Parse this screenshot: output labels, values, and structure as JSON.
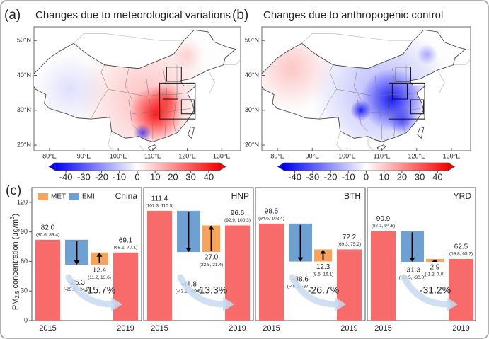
{
  "chart_data": [
    {
      "type": "map",
      "panel": "(a)",
      "title": "Changes due to meteorological variations",
      "xlim": [
        75.5,
        135.5
      ],
      "ylim": [
        18.4,
        53.9
      ],
      "xticks": [
        {
          "value": 80,
          "label": "80°E"
        },
        {
          "value": 90,
          "label": "90°E"
        },
        {
          "value": 100,
          "label": "100°E"
        },
        {
          "value": 110,
          "label": "110°E"
        },
        {
          "value": 120,
          "label": "120°E"
        },
        {
          "value": 130,
          "label": "130°E"
        }
      ],
      "yticks": [
        {
          "value": 20,
          "label": "20°N"
        },
        {
          "value": 30,
          "label": "30°N"
        },
        {
          "value": 40,
          "label": "40°N"
        },
        {
          "value": 50,
          "label": "50°N"
        }
      ],
      "colormap": [
        "#0000ff",
        "#ffffff",
        "#ff0000"
      ],
      "cbar_lim": [
        -46,
        46
      ],
      "cbar_ticks": [
        -40,
        -30,
        -20,
        -10,
        0,
        10,
        20,
        30,
        40
      ]
    },
    {
      "type": "map",
      "panel": "(b)",
      "title": "Changes due to anthropogenic control",
      "xlim": [
        75.5,
        135.5
      ],
      "ylim": [
        18.4,
        53.9
      ],
      "xticks": [
        {
          "value": 80,
          "label": "80°E"
        },
        {
          "value": 90,
          "label": "90°E"
        },
        {
          "value": 100,
          "label": "100°E"
        },
        {
          "value": 110,
          "label": "110°E"
        },
        {
          "value": 120,
          "label": "120°E"
        },
        {
          "value": 130,
          "label": "130°E"
        }
      ],
      "yticks": [
        {
          "value": 20,
          "label": "20°N"
        },
        {
          "value": 30,
          "label": "30°N"
        },
        {
          "value": 40,
          "label": "40°N"
        },
        {
          "value": 50,
          "label": "50°N"
        }
      ],
      "colormap": [
        "#0000ff",
        "#ffffff",
        "#ff0000"
      ],
      "cbar_lim": [
        -46,
        46
      ],
      "cbar_ticks": [
        -40,
        -30,
        -20,
        -10,
        0,
        10,
        20,
        30,
        40
      ]
    },
    {
      "type": "waterfall",
      "panel": "(c)",
      "title": "China",
      "ylabel": [
        "PM",
        "2.5",
        " concentration (μg/m",
        "3",
        ")"
      ],
      "legend": [
        {
          "name": "MET",
          "color": "#f7a35c"
        },
        {
          "name": "EMI",
          "color": "#6fa0d2"
        }
      ],
      "categories": [
        "2015",
        null,
        null,
        "2019"
      ],
      "values": [
        82.0,
        -25.3,
        12.4,
        69.1
      ],
      "value_labels": [
        "82.0",
        "-25.3",
        "12.4",
        "69.1"
      ],
      "intervals": [
        "(80.6, 83.4)",
        "(-25.8, -24.9)",
        "(11.2, 13.6)",
        "(68.1, 70.1)"
      ],
      "colors": [
        "#f76b6b",
        "#6fa0d2",
        "#f7a35c",
        "#f76b6b"
      ],
      "change": "-15.7%",
      "ylim": [
        0,
        135
      ],
      "yticks": [
        0,
        30,
        60,
        90,
        120
      ]
    },
    {
      "type": "waterfall",
      "title": "HNP",
      "categories": [
        "2015",
        null,
        null,
        "2019"
      ],
      "values": [
        111.4,
        -41.8,
        27.0,
        96.6
      ],
      "value_labels": [
        "111.4",
        "-41.8",
        "27.0",
        "96.6"
      ],
      "intervals": [
        "(107.3, 115.5)",
        "(-43.1, -40.6)",
        "(22.5, 31.4)",
        "(92.9, 100.3)"
      ],
      "colors": [
        "#f76b6b",
        "#6fa0d2",
        "#f7a35c",
        "#f76b6b"
      ],
      "change": "-13.3%",
      "ylim": [
        0,
        135
      ]
    },
    {
      "type": "waterfall",
      "title": "BTH",
      "categories": [
        "2015",
        null,
        null,
        "2019"
      ],
      "values": [
        98.5,
        -38.6,
        12.3,
        72.2
      ],
      "value_labels": [
        "98.5",
        "-38.6",
        "12.3",
        "72.2"
      ],
      "intervals": [
        "(94.6, 102.4)",
        "(-40.1, -37.1)",
        "(8.5, 16.1)",
        "(69.3, 75.2)"
      ],
      "colors": [
        "#f76b6b",
        "#6fa0d2",
        "#f7a35c",
        "#f76b6b"
      ],
      "change": "-26.7%",
      "ylim": [
        0,
        135
      ]
    },
    {
      "type": "waterfall",
      "title": "YRD",
      "categories": [
        "2015",
        null,
        null,
        "2019"
      ],
      "values": [
        90.9,
        -31.3,
        2.9,
        62.5
      ],
      "value_labels": [
        "90.9",
        "-31.3",
        "2.9",
        "62.5"
      ],
      "intervals": [
        "(87.1, 94.6)",
        "(-32.5, -30.0)",
        "(-1.2, 7.0)",
        "(59.8, 65.2)"
      ],
      "colors": [
        "#f76b6b",
        "#6fa0d2",
        "#f7a35c",
        "#f76b6b"
      ],
      "change": "-31.2%",
      "ylim": [
        0,
        135
      ]
    }
  ]
}
